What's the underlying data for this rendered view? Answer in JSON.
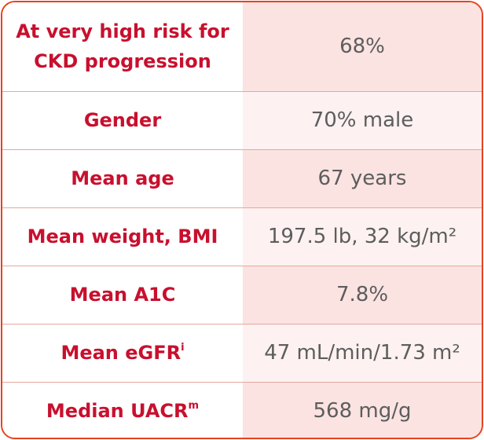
{
  "rows": [
    {
      "label": "At very high risk for CKD progression",
      "value": "68%"
    },
    {
      "label": "Gender",
      "value": "70% male"
    },
    {
      "label": "Mean age",
      "value": "67 years"
    },
    {
      "label": "Mean weight, BMI",
      "value": "197.5 lb, 32 kg/m²"
    },
    {
      "label": "Mean A1C",
      "value": "7.8%"
    },
    {
      "label": "Mean eGFR",
      "label_sup": "i",
      "value": "47 mL/min/1.73 m²"
    },
    {
      "label": "Median UACR",
      "label_sup": "m",
      "value": "568 mg/g"
    }
  ],
  "colors": {
    "border": "#e8421e",
    "label_text": "#c8102e",
    "value_text": "#5d5d5d",
    "shade_dark": "#fbe3e2",
    "shade_light": "#fdf1f1"
  }
}
